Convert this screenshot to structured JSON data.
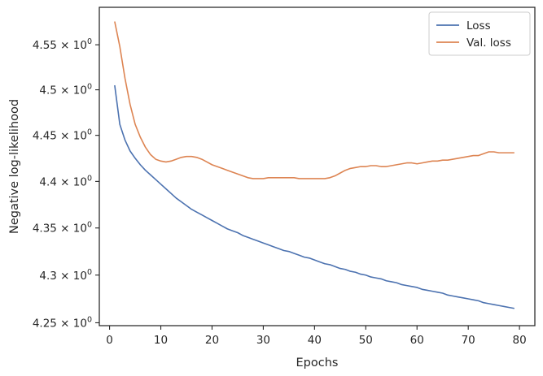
{
  "chart_data": {
    "type": "line",
    "xlabel": "Epochs",
    "ylabel": "Negative log-likelihood",
    "xlim": [
      -2,
      83
    ],
    "ylim": [
      4.247,
      4.592
    ],
    "yscale": "log",
    "x_ticks": [
      0,
      10,
      20,
      30,
      40,
      50,
      60,
      70,
      80
    ],
    "x_tick_labels": [
      "0",
      "10",
      "20",
      "30",
      "40",
      "50",
      "60",
      "70",
      "80"
    ],
    "y_ticks": [
      4.25,
      4.3,
      4.35,
      4.4,
      4.45,
      4.5,
      4.55
    ],
    "y_tick_mantissas": [
      "4.25",
      "4.3",
      "4.35",
      "4.4",
      "4.45",
      "4.5",
      "4.55"
    ],
    "y_tick_base": "× 10",
    "y_tick_exp": "0",
    "grid": false,
    "legend_position": "top-right",
    "series": [
      {
        "name": "Loss",
        "color": "#4c72b0",
        "x": [
          1,
          2,
          3,
          4,
          5,
          6,
          7,
          8,
          9,
          10,
          11,
          12,
          13,
          14,
          15,
          16,
          17,
          18,
          19,
          20,
          21,
          22,
          23,
          24,
          25,
          26,
          27,
          28,
          29,
          30,
          31,
          32,
          33,
          34,
          35,
          36,
          37,
          38,
          39,
          40,
          41,
          42,
          43,
          44,
          45,
          46,
          47,
          48,
          49,
          50,
          51,
          52,
          53,
          54,
          55,
          56,
          57,
          58,
          59,
          60,
          61,
          62,
          63,
          64,
          65,
          66,
          67,
          68,
          69,
          70,
          71,
          72,
          73,
          74,
          75,
          76,
          77,
          78,
          79
        ],
        "values": [
          4.505,
          4.462,
          4.445,
          4.433,
          4.425,
          4.418,
          4.412,
          4.407,
          4.402,
          4.397,
          4.392,
          4.387,
          4.382,
          4.378,
          4.374,
          4.37,
          4.367,
          4.364,
          4.361,
          4.358,
          4.355,
          4.352,
          4.349,
          4.347,
          4.345,
          4.342,
          4.34,
          4.338,
          4.336,
          4.334,
          4.332,
          4.33,
          4.328,
          4.326,
          4.325,
          4.323,
          4.321,
          4.319,
          4.318,
          4.316,
          4.314,
          4.312,
          4.311,
          4.309,
          4.307,
          4.306,
          4.304,
          4.303,
          4.301,
          4.3,
          4.298,
          4.297,
          4.296,
          4.294,
          4.293,
          4.292,
          4.29,
          4.289,
          4.288,
          4.287,
          4.285,
          4.284,
          4.283,
          4.282,
          4.281,
          4.279,
          4.278,
          4.277,
          4.276,
          4.275,
          4.274,
          4.273,
          4.271,
          4.27,
          4.269,
          4.268,
          4.267,
          4.266,
          4.265
        ]
      },
      {
        "name": "Val. loss",
        "color": "#dd8452",
        "x": [
          1,
          2,
          3,
          4,
          5,
          6,
          7,
          8,
          9,
          10,
          11,
          12,
          13,
          14,
          15,
          16,
          17,
          18,
          19,
          20,
          21,
          22,
          23,
          24,
          25,
          26,
          27,
          28,
          29,
          30,
          31,
          32,
          33,
          34,
          35,
          36,
          37,
          38,
          39,
          40,
          41,
          42,
          43,
          44,
          45,
          46,
          47,
          48,
          49,
          50,
          51,
          52,
          53,
          54,
          55,
          56,
          57,
          58,
          59,
          60,
          61,
          62,
          63,
          64,
          65,
          66,
          67,
          68,
          69,
          70,
          71,
          72,
          73,
          74,
          75,
          76,
          77,
          78,
          79
        ],
        "values": [
          4.576,
          4.548,
          4.513,
          4.484,
          4.462,
          4.448,
          4.437,
          4.429,
          4.424,
          4.422,
          4.421,
          4.422,
          4.424,
          4.426,
          4.427,
          4.427,
          4.426,
          4.424,
          4.421,
          4.418,
          4.416,
          4.414,
          4.412,
          4.41,
          4.408,
          4.406,
          4.404,
          4.403,
          4.403,
          4.403,
          4.404,
          4.404,
          4.404,
          4.404,
          4.404,
          4.404,
          4.403,
          4.403,
          4.403,
          4.403,
          4.403,
          4.403,
          4.404,
          4.406,
          4.409,
          4.412,
          4.414,
          4.415,
          4.416,
          4.416,
          4.417,
          4.417,
          4.416,
          4.416,
          4.417,
          4.418,
          4.419,
          4.42,
          4.42,
          4.419,
          4.42,
          4.421,
          4.422,
          4.422,
          4.423,
          4.423,
          4.424,
          4.425,
          4.426,
          4.427,
          4.428,
          4.428,
          4.43,
          4.432,
          4.432,
          4.431,
          4.431,
          4.431,
          4.431
        ]
      }
    ]
  }
}
